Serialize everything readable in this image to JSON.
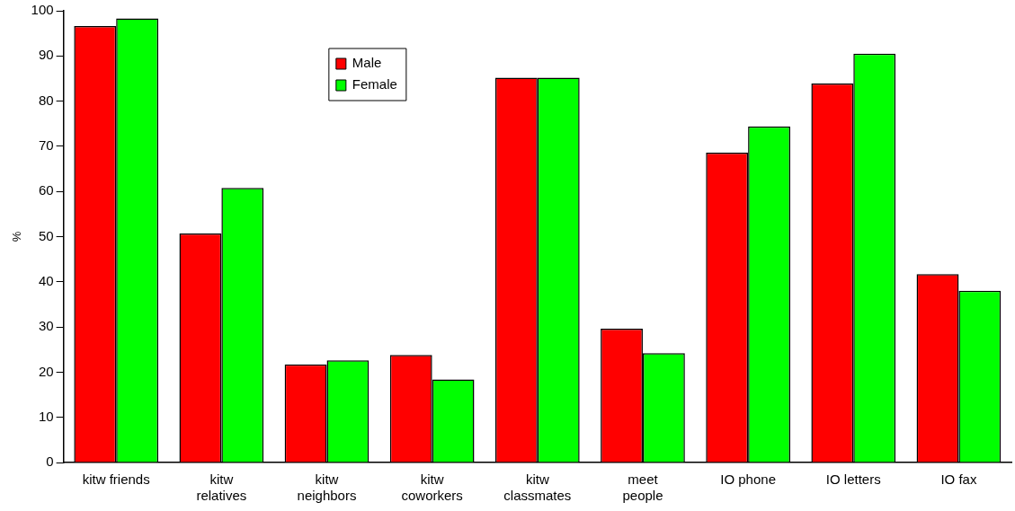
{
  "chart_data": {
    "type": "bar",
    "ylabel": "%",
    "categories": [
      "kitw friends",
      "kitw\nrelatives",
      "kitw\nneighbors",
      "kitw\ncoworkers",
      "kitw\nclassmates",
      "meet\npeople",
      "IO phone",
      "IO letters",
      "IO fax"
    ],
    "series": [
      {
        "name": "Male",
        "color": "#ff0000",
        "values": [
          96.6,
          50.7,
          21.7,
          23.8,
          85.2,
          29.6,
          68.6,
          83.9,
          41.7
        ]
      },
      {
        "name": "Female",
        "color": "#00ff00",
        "values": [
          98.3,
          60.8,
          22.6,
          18.4,
          85.2,
          24.2,
          74.4,
          90.5,
          38.0
        ]
      }
    ],
    "ylim": [
      0,
      100
    ],
    "yticks": [
      0,
      10,
      20,
      30,
      40,
      50,
      60,
      70,
      80,
      90,
      100
    ],
    "grid": false,
    "legend": "top"
  }
}
